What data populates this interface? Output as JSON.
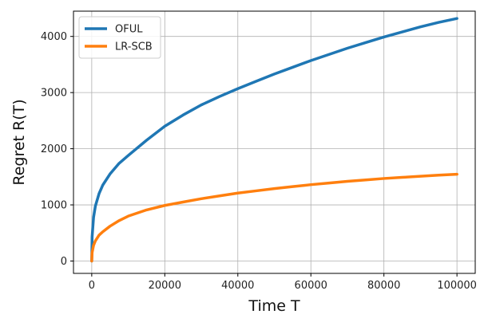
{
  "chart_data": {
    "type": "line",
    "xlabel": "Time T",
    "ylabel": "Regret R(T)",
    "xlim": [
      -5000,
      105000
    ],
    "ylim": [
      -220,
      4450
    ],
    "xticks": [
      0,
      20000,
      40000,
      60000,
      80000,
      100000
    ],
    "yticks": [
      0,
      1000,
      2000,
      3000,
      4000
    ],
    "grid": true,
    "legend_position": "upper-left",
    "series": [
      {
        "name": "OFUL",
        "color": "#1f77b4",
        "x": [
          0,
          100,
          500,
          1000,
          2000,
          3000,
          5000,
          7500,
          10000,
          15000,
          20000,
          25000,
          30000,
          35000,
          40000,
          45000,
          50000,
          55000,
          60000,
          65000,
          70000,
          75000,
          80000,
          85000,
          90000,
          95000,
          100000
        ],
        "y": [
          0,
          430,
          780,
          980,
          1200,
          1350,
          1550,
          1740,
          1880,
          2150,
          2400,
          2600,
          2780,
          2930,
          3070,
          3200,
          3330,
          3450,
          3570,
          3680,
          3790,
          3890,
          3990,
          4080,
          4170,
          4250,
          4320
        ]
      },
      {
        "name": "LR-SCB",
        "color": "#ff7f0e",
        "x": [
          0,
          100,
          500,
          1000,
          2000,
          3000,
          5000,
          7500,
          10000,
          15000,
          20000,
          25000,
          30000,
          35000,
          40000,
          45000,
          50000,
          55000,
          60000,
          65000,
          70000,
          75000,
          80000,
          85000,
          90000,
          95000,
          100000
        ],
        "y": [
          0,
          150,
          280,
          360,
          460,
          520,
          620,
          720,
          800,
          910,
          990,
          1050,
          1110,
          1160,
          1210,
          1250,
          1290,
          1325,
          1360,
          1390,
          1420,
          1445,
          1470,
          1490,
          1510,
          1530,
          1545
        ]
      }
    ]
  }
}
